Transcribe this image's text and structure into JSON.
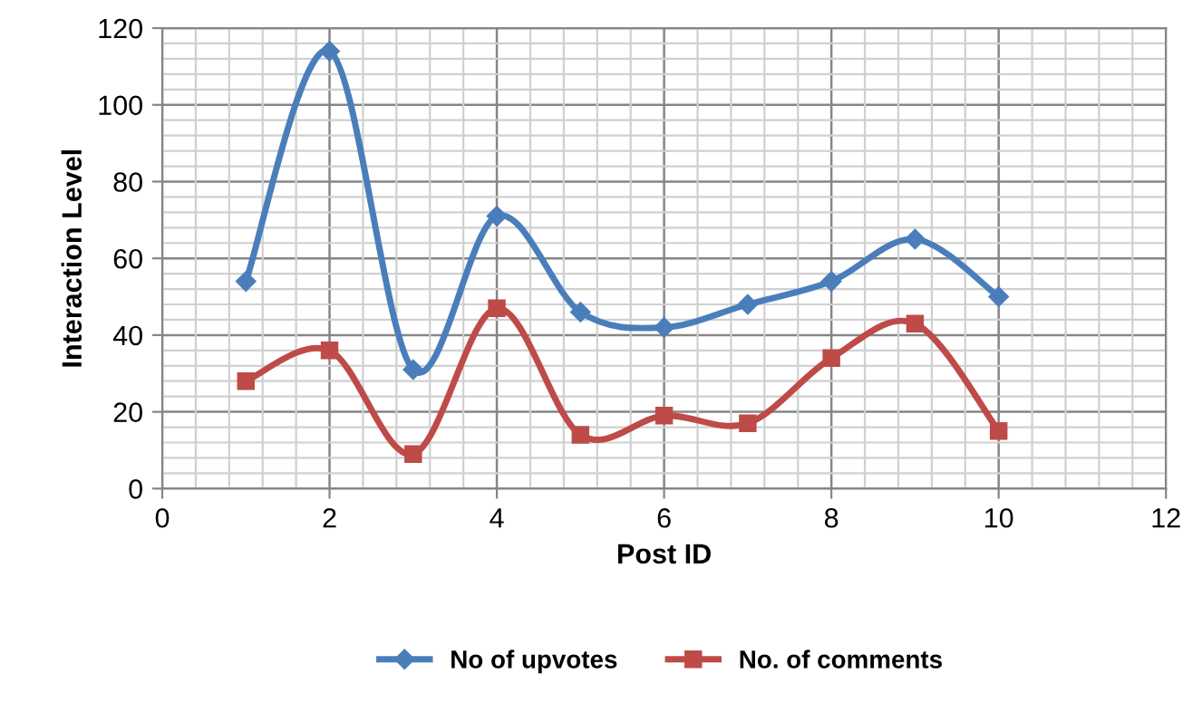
{
  "chart_data": {
    "type": "line",
    "xlabel": "Post ID",
    "ylabel": "Interaction Level",
    "x": [
      1,
      2,
      3,
      4,
      5,
      6,
      7,
      8,
      9,
      10
    ],
    "series": [
      {
        "name": "No of upvotes",
        "color": "#4a7ebb",
        "marker": "diamond",
        "values": [
          54,
          114,
          31,
          71,
          46,
          42,
          48,
          54,
          65,
          50
        ]
      },
      {
        "name": "No. of comments",
        "color": "#be4b48",
        "marker": "square",
        "values": [
          28,
          36,
          9,
          47,
          14,
          19,
          17,
          34,
          43,
          15
        ]
      }
    ],
    "xlim": [
      0,
      12
    ],
    "xticks": [
      0,
      2,
      4,
      6,
      8,
      10,
      12
    ],
    "ylim": [
      0,
      120
    ],
    "yticks": [
      0,
      20,
      40,
      60,
      80,
      100,
      120
    ],
    "grid": true,
    "legend": "bottom",
    "line_style": "solid"
  }
}
